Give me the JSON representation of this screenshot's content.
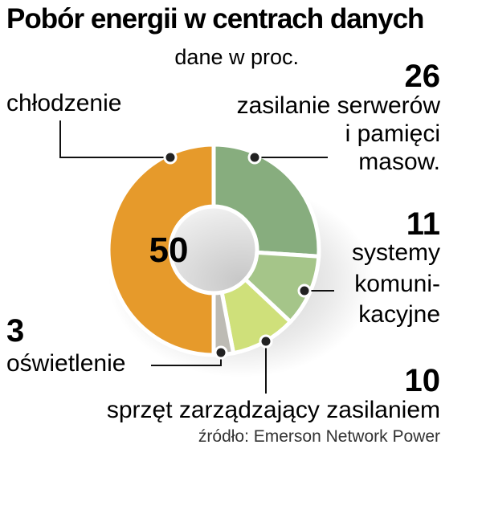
{
  "chart_data": {
    "type": "pie",
    "variant": "donut",
    "title": "Pobór energii w centrach danych",
    "subtitle": "dane w proc.",
    "source": "źródło: Emerson Network Power",
    "center_value_label": "50",
    "slices": [
      {
        "value": 26,
        "value_label": "26",
        "label_lines": [
          "zasilanie serwerów",
          "i pamięci",
          "masow."
        ],
        "color": "#87AD7E"
      },
      {
        "value": 11,
        "value_label": "11",
        "label_lines": [
          "systemy",
          "komuni-",
          "kacyjne"
        ],
        "color": "#A5C589"
      },
      {
        "value": 10,
        "value_label": "10",
        "label_lines": [
          "sprzęt zarządzający zasilaniem"
        ],
        "color": "#CFE07A"
      },
      {
        "value": 3,
        "value_label": "3",
        "label_lines": [
          "oświetlenie"
        ],
        "color": "#BDBBB4"
      },
      {
        "value": 50,
        "value_label": "",
        "label_lines": [
          "chłodzenie"
        ],
        "color": "#E69A2B"
      }
    ]
  }
}
